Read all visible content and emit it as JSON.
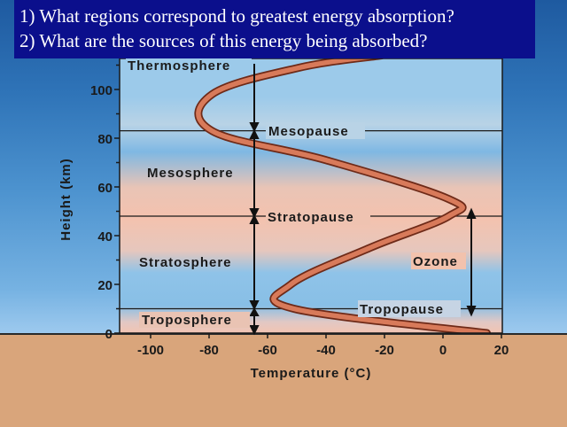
{
  "questions": [
    "1) What regions correspond to greatest energy absorption?",
    "2) What are the sources of this energy being absorbed?"
  ],
  "diagram": {
    "y_axis": {
      "label": "Height (km)",
      "ticks": [
        "0",
        "20",
        "40",
        "60",
        "80",
        "100"
      ],
      "range_km": [
        0,
        110
      ]
    },
    "x_axis": {
      "label": "Temperature (°C)",
      "ticks": [
        "-100",
        "-80",
        "-60",
        "-40",
        "-20",
        "0",
        "20"
      ],
      "range_c": [
        -110,
        20
      ]
    },
    "layers": {
      "thermosphere": "Thermosphere",
      "mesosphere": "Mesosphere",
      "stratosphere": "Stratosphere",
      "troposphere": "Troposphere"
    },
    "boundaries": {
      "mesopause": "Mesopause",
      "stratopause": "Stratopause",
      "tropopause": "Tropopause"
    },
    "ozone_label": "Ozone",
    "boundary_heights_km": {
      "tropopause": 10,
      "stratopause": 48,
      "mesopause": 83
    },
    "temperature_profile": [
      {
        "t": 15,
        "h": 0
      },
      {
        "t": -51,
        "h": 10
      },
      {
        "t": -52,
        "h": 20
      },
      {
        "t": -25,
        "h": 35
      },
      {
        "t": 2,
        "h": 48
      },
      {
        "t": 2,
        "h": 55
      },
      {
        "t": -40,
        "h": 71
      },
      {
        "t": -79,
        "h": 83
      },
      {
        "t": -79,
        "h": 98
      },
      {
        "t": -49,
        "h": 109
      },
      {
        "t": -21,
        "h": 114
      }
    ],
    "colors": {
      "profile_fill": "#d87a5a",
      "profile_outline": "#6e2a18",
      "warm_band": "#f4c2ae",
      "cool_band": "#8fc3e8",
      "ground": "#d9a57b",
      "question_box": "#0b0f8c"
    }
  }
}
